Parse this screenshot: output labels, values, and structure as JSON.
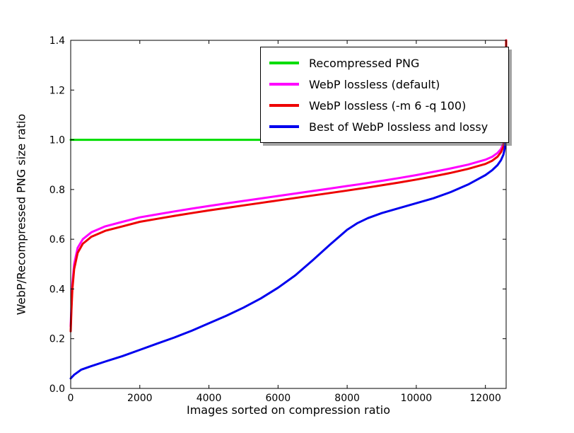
{
  "figure": {
    "background": "#ffffff",
    "frame_color": "#000000"
  },
  "chart_data": {
    "type": "line",
    "title": "",
    "xlabel": "Images sorted on compression ratio",
    "ylabel": "WebP/Recompressed PNG size ratio",
    "xlim": [
      0,
      12600
    ],
    "ylim": [
      0.0,
      1.4
    ],
    "grid": false,
    "legend_position": "upper right inside",
    "xticks": {
      "values": [
        0,
        2000,
        4000,
        6000,
        8000,
        10000,
        12000
      ],
      "labels": [
        "0",
        "2000",
        "4000",
        "6000",
        "8000",
        "10000",
        "12000"
      ]
    },
    "yticks": {
      "values": [
        0.0,
        0.2,
        0.4,
        0.6,
        0.8,
        1.0,
        1.2,
        1.4
      ],
      "labels": [
        "0.0",
        "0.2",
        "0.4",
        "0.6",
        "0.8",
        "1.0",
        "1.2",
        "1.4"
      ]
    },
    "series": [
      {
        "label": "Recompressed PNG",
        "color": "#00dd00",
        "width": 3,
        "points": [
          [
            0,
            1.0
          ],
          [
            12600,
            1.0
          ]
        ]
      },
      {
        "label": "WebP lossless (default)",
        "color": "#ff00ff",
        "width": 3,
        "points": [
          [
            0,
            0.25
          ],
          [
            20,
            0.33
          ],
          [
            50,
            0.42
          ],
          [
            100,
            0.5
          ],
          [
            200,
            0.565
          ],
          [
            350,
            0.6
          ],
          [
            600,
            0.628
          ],
          [
            1000,
            0.652
          ],
          [
            1500,
            0.67
          ],
          [
            2000,
            0.688
          ],
          [
            2500,
            0.7
          ],
          [
            3000,
            0.712
          ],
          [
            3500,
            0.723
          ],
          [
            4000,
            0.734
          ],
          [
            4500,
            0.744
          ],
          [
            5000,
            0.754
          ],
          [
            5500,
            0.764
          ],
          [
            6000,
            0.774
          ],
          [
            6500,
            0.784
          ],
          [
            7000,
            0.794
          ],
          [
            7500,
            0.804
          ],
          [
            8000,
            0.814
          ],
          [
            8500,
            0.824
          ],
          [
            9000,
            0.835
          ],
          [
            9500,
            0.846
          ],
          [
            10000,
            0.858
          ],
          [
            10500,
            0.871
          ],
          [
            11000,
            0.885
          ],
          [
            11500,
            0.9
          ],
          [
            12000,
            0.92
          ],
          [
            12200,
            0.932
          ],
          [
            12350,
            0.947
          ],
          [
            12450,
            0.963
          ],
          [
            12520,
            0.985
          ],
          [
            12560,
            1.01
          ],
          [
            12580,
            1.05
          ],
          [
            12595,
            1.13
          ],
          [
            12600,
            1.4
          ]
        ]
      },
      {
        "label": "WebP lossless (-m 6 -q 100)",
        "color": "#ee0000",
        "width": 3,
        "points": [
          [
            0,
            0.23
          ],
          [
            20,
            0.31
          ],
          [
            50,
            0.4
          ],
          [
            100,
            0.48
          ],
          [
            200,
            0.545
          ],
          [
            350,
            0.582
          ],
          [
            600,
            0.61
          ],
          [
            1000,
            0.634
          ],
          [
            1500,
            0.652
          ],
          [
            2000,
            0.67
          ],
          [
            2500,
            0.682
          ],
          [
            3000,
            0.694
          ],
          [
            3500,
            0.705
          ],
          [
            4000,
            0.716
          ],
          [
            4500,
            0.726
          ],
          [
            5000,
            0.736
          ],
          [
            5500,
            0.746
          ],
          [
            6000,
            0.756
          ],
          [
            6500,
            0.766
          ],
          [
            7000,
            0.776
          ],
          [
            7500,
            0.786
          ],
          [
            8000,
            0.796
          ],
          [
            8500,
            0.806
          ],
          [
            9000,
            0.817
          ],
          [
            9500,
            0.828
          ],
          [
            10000,
            0.84
          ],
          [
            10500,
            0.853
          ],
          [
            11000,
            0.867
          ],
          [
            11500,
            0.883
          ],
          [
            12000,
            0.903
          ],
          [
            12200,
            0.916
          ],
          [
            12350,
            0.932
          ],
          [
            12450,
            0.95
          ],
          [
            12520,
            0.972
          ],
          [
            12560,
            1.005
          ],
          [
            12580,
            1.04
          ],
          [
            12595,
            1.12
          ],
          [
            12600,
            1.4
          ]
        ]
      },
      {
        "label": "Best of WebP lossless and lossy",
        "color": "#0000ee",
        "width": 3,
        "points": [
          [
            0,
            0.04
          ],
          [
            100,
            0.055
          ],
          [
            300,
            0.075
          ],
          [
            600,
            0.09
          ],
          [
            1000,
            0.108
          ],
          [
            1500,
            0.13
          ],
          [
            2000,
            0.155
          ],
          [
            2500,
            0.18
          ],
          [
            3000,
            0.205
          ],
          [
            3500,
            0.232
          ],
          [
            4000,
            0.262
          ],
          [
            4500,
            0.292
          ],
          [
            5000,
            0.325
          ],
          [
            5500,
            0.362
          ],
          [
            6000,
            0.405
          ],
          [
            6500,
            0.455
          ],
          [
            7000,
            0.515
          ],
          [
            7500,
            0.578
          ],
          [
            8000,
            0.638
          ],
          [
            8300,
            0.665
          ],
          [
            8600,
            0.685
          ],
          [
            9000,
            0.705
          ],
          [
            9500,
            0.725
          ],
          [
            10000,
            0.745
          ],
          [
            10500,
            0.765
          ],
          [
            11000,
            0.79
          ],
          [
            11500,
            0.82
          ],
          [
            12000,
            0.858
          ],
          [
            12200,
            0.878
          ],
          [
            12350,
            0.898
          ],
          [
            12450,
            0.918
          ],
          [
            12520,
            0.94
          ],
          [
            12560,
            0.965
          ],
          [
            12580,
            1.0
          ],
          [
            12590,
            1.05
          ],
          [
            12600,
            1.15
          ]
        ]
      }
    ]
  }
}
